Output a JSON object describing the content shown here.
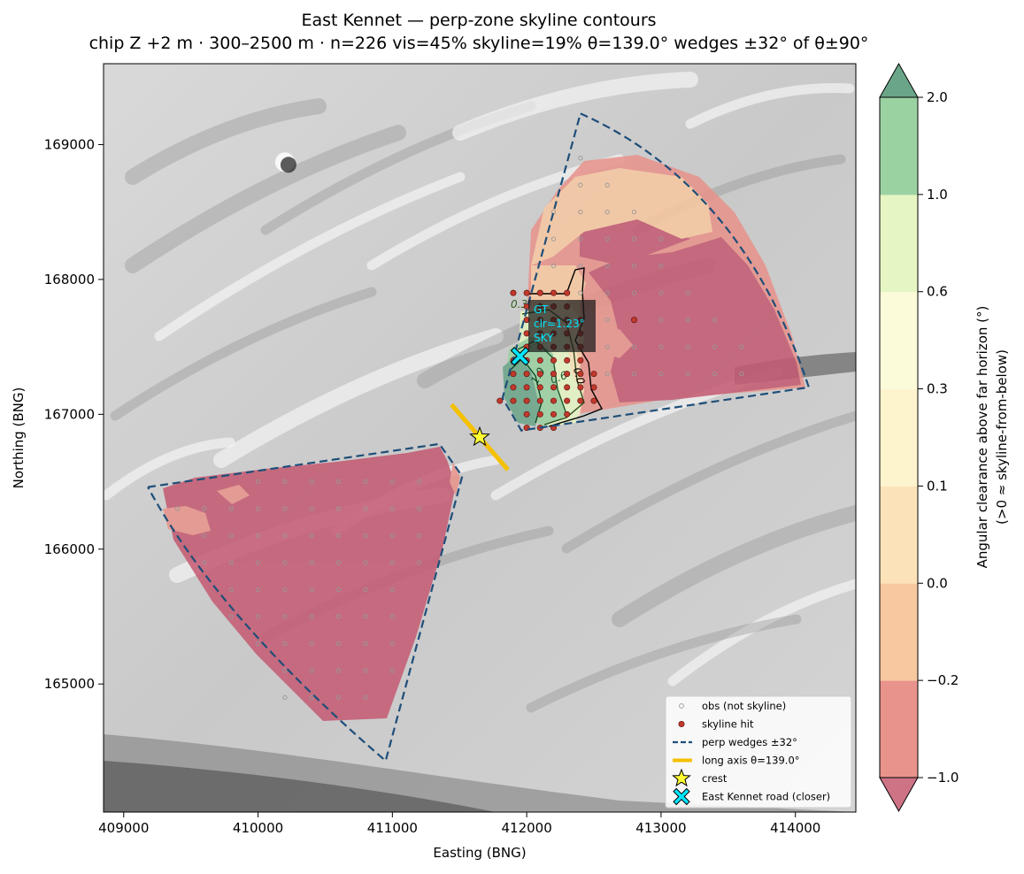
{
  "chart_data": {
    "type": "contour-map",
    "title": "East Kennet — perp-zone skyline contours",
    "subtitle": "chip Z +2 m · 300–2500 m · n=226  vis=45%  skyline=19%  θ=139.0°  wedges ±32° of θ±90°",
    "xlabel": "Easting (BNG)",
    "ylabel": "Northing (BNG)",
    "xlim": [
      408850,
      414450
    ],
    "ylim": [
      164050,
      169600
    ],
    "xticks": [
      409000,
      410000,
      411000,
      412000,
      413000,
      414000
    ],
    "yticks": [
      165000,
      166000,
      167000,
      168000,
      169000
    ],
    "xtick_labels": [
      "409000",
      "410000",
      "411000",
      "412000",
      "413000",
      "414000"
    ],
    "ytick_labels": [
      "165000",
      "166000",
      "167000",
      "168000",
      "169000"
    ],
    "colorbar": {
      "label_line1": "Angular clearance above far horizon (°)",
      "label_line2": "(>0 ≈ skyline-from-below)",
      "levels": [
        -1.0,
        -0.2,
        0.0,
        0.1,
        0.3,
        0.6,
        1.0,
        2.0
      ],
      "tick_labels": [
        "−1.0",
        "−0.2",
        "0.0",
        "0.1",
        "0.3",
        "0.6",
        "1.0",
        "2.0"
      ],
      "colors": [
        "#e8938b",
        "#f8c8a1",
        "#fbe2b8",
        "#fdf4ce",
        "#fbfbda",
        "#e6f5c4",
        "#9bd2a2"
      ],
      "under_color": "#cd7385",
      "over_color": "#6aa588"
    },
    "contour_labels": [
      "0.3",
      "1.0",
      "0.6",
      "0.0"
    ],
    "annotation": {
      "line1": "GT",
      "line2": "clr=1.23°",
      "line3": "SKY",
      "color": "#00e5ff"
    },
    "long_axis_theta_deg": 139.0,
    "crest": [
      411650,
      166830
    ],
    "road_point": [
      411950,
      167430
    ],
    "legend": {
      "position": "lower-right",
      "entries": [
        {
          "key": "obs",
          "label": "obs (not skyline)"
        },
        {
          "key": "hit",
          "label": "skyline hit"
        },
        {
          "key": "wedge",
          "label": "perp wedges ±32°"
        },
        {
          "key": "axis",
          "label": "long axis θ=139.0°"
        },
        {
          "key": "crest",
          "label": "crest"
        },
        {
          "key": "road",
          "label": "East Kennet road (closer)"
        }
      ]
    },
    "colors": {
      "wedge_line": "#1f4e79",
      "long_axis": "#f5c000",
      "crest_star": "#ffff33",
      "road_marker": "#00e5ff",
      "hit_marker": "#c0392b",
      "obs_marker": "#999999"
    },
    "north_zone": {
      "wedge": [
        [
          412400,
          169230
        ],
        [
          414100,
          167200
        ],
        [
          411960,
          166880
        ],
        [
          411820,
          167120
        ]
      ],
      "hit_rows": [
        {
          "y": 167900,
          "x": [
            411900,
            412000,
            412100,
            412200,
            412300
          ]
        },
        {
          "y": 167800,
          "x": [
            412000,
            412100,
            412200,
            412300
          ]
        },
        {
          "y": 167700,
          "x": [
            412000,
            412100,
            412200,
            412300,
            412400,
            412800
          ]
        },
        {
          "y": 167600,
          "x": [
            412000,
            412100,
            412200,
            412300,
            412400
          ]
        },
        {
          "y": 167500,
          "x": [
            412000,
            412100,
            412200,
            412300,
            412400
          ]
        },
        {
          "y": 167400,
          "x": [
            411900,
            412000,
            412100,
            412200,
            412300,
            412400
          ]
        },
        {
          "y": 167300,
          "x": [
            411900,
            412000,
            412100,
            412200,
            412300,
            412400,
            412500
          ]
        },
        {
          "y": 167200,
          "x": [
            411900,
            412000,
            412100,
            412200,
            412300,
            412400,
            412500
          ]
        },
        {
          "y": 167100,
          "x": [
            411800,
            411900,
            412000,
            412100,
            412200,
            412300,
            412400,
            412500
          ]
        },
        {
          "y": 167000,
          "x": [
            412000,
            412100,
            412200,
            412300
          ]
        },
        {
          "y": 166900,
          "x": [
            412000,
            412100,
            412200
          ]
        }
      ]
    },
    "south_zone": {
      "wedge": [
        [
          409180,
          166460
        ],
        [
          411350,
          166780
        ],
        [
          411520,
          166540
        ],
        [
          410950,
          164430
        ]
      ]
    }
  }
}
